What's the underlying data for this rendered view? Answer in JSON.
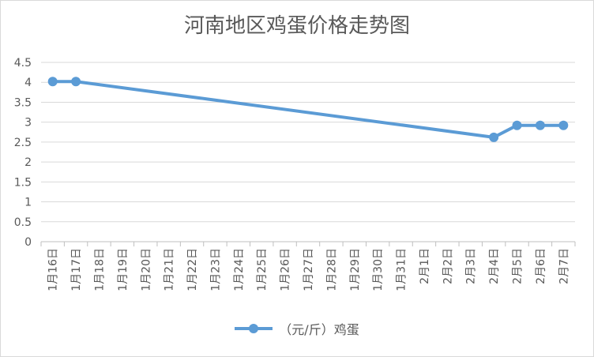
{
  "chart_data": {
    "type": "line",
    "title": "河南地区鸡蛋价格走势图",
    "categories": [
      "1月16日",
      "1月17日",
      "1月18日",
      "1月19日",
      "1月20日",
      "1月21日",
      "1月22日",
      "1月23日",
      "1月24日",
      "1月25日",
      "1月26日",
      "1月27日",
      "1月28日",
      "1月29日",
      "1月30日",
      "1月31日",
      "2月1日",
      "2月2日",
      "2月3日",
      "2月4日",
      "2月5日",
      "2月6日",
      "2月7日"
    ],
    "y_ticks": [
      "0",
      "0.5",
      "1",
      "1.5",
      "2",
      "2.5",
      "3",
      "3.5",
      "4",
      "4.5"
    ],
    "ylim": [
      0,
      4.5
    ],
    "grid": true,
    "legend_position": "bottom",
    "series": [
      {
        "name": "（元/斤）鸡蛋",
        "color": "#5b9bd5",
        "points": [
          {
            "x": "1月16日",
            "y": 4.02
          },
          {
            "x": "1月17日",
            "y": 4.02
          },
          {
            "x": "2月4日",
            "y": 2.62
          },
          {
            "x": "2月5日",
            "y": 2.92
          },
          {
            "x": "2月6日",
            "y": 2.92
          },
          {
            "x": "2月7日",
            "y": 2.92
          }
        ]
      }
    ]
  }
}
